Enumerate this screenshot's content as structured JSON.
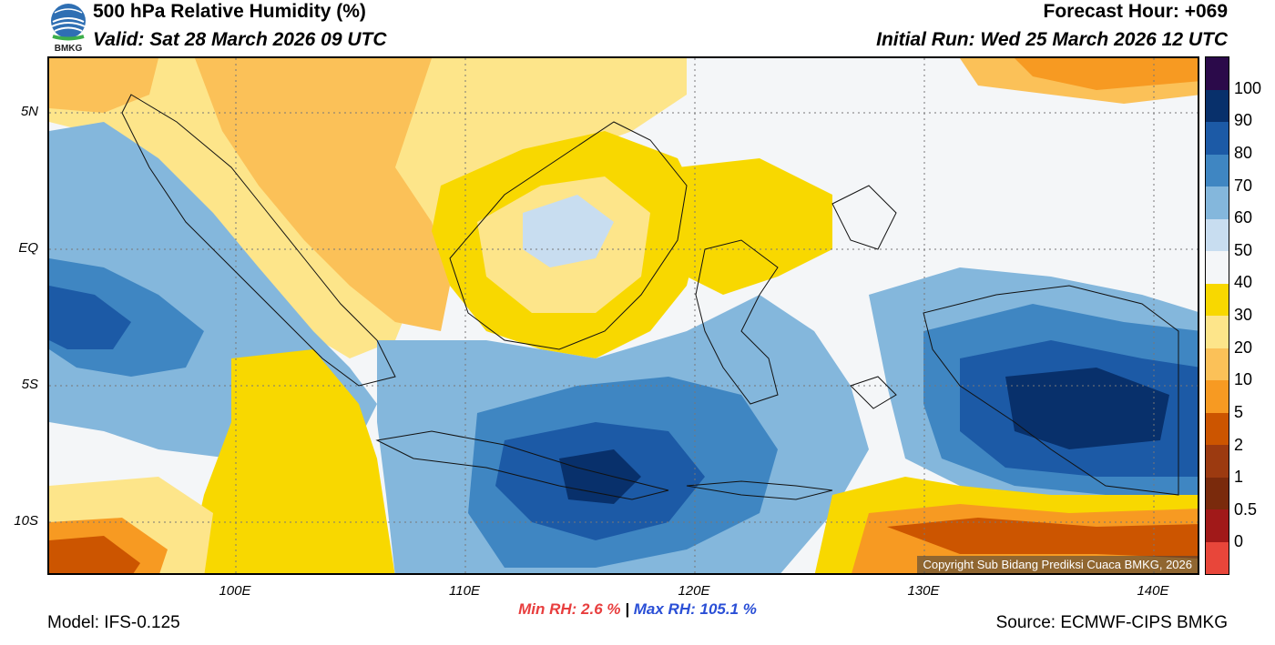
{
  "header": {
    "title": "500 hPa Relative Humidity (%)",
    "valid": "Valid: Sat 28 March 2026 09 UTC",
    "forecast_hour": "Forecast Hour: +069",
    "initial_run": "Initial Run: Wed 25 March 2026 12 UTC"
  },
  "logo": {
    "text": "BMKG"
  },
  "axes": {
    "latitude_labels": [
      "5N",
      "EQ",
      "5S",
      "10S"
    ],
    "longitude_labels": [
      "100E",
      "110E",
      "120E",
      "130E",
      "140E"
    ]
  },
  "colorbar": {
    "labels": [
      "100",
      "90",
      "80",
      "70",
      "60",
      "50",
      "40",
      "30",
      "20",
      "10",
      "5",
      "2",
      "1",
      "0.5",
      "0"
    ],
    "colors": [
      "#2b0a4a",
      "#08306b",
      "#1c5aa6",
      "#3f86c2",
      "#84b7dc",
      "#c8ddf0",
      "#f4f6f8",
      "#f8d800",
      "#fde58a",
      "#fbc158",
      "#f79a22",
      "#cc5500",
      "#9c3a10",
      "#7a2a0c",
      "#a11919",
      "#e8463a"
    ]
  },
  "stats": {
    "min_label": "Min RH:",
    "min_value": "2.6 %",
    "separator": "|",
    "max_label": "Max RH:",
    "max_value": "105.1 %"
  },
  "footer": {
    "model": "Model: IFS-0.125",
    "source": "Source: ECMWF-CIPS BMKG",
    "copyright": "Copyright Sub Bidang Prediksi Cuaca BMKG, 2026"
  }
}
